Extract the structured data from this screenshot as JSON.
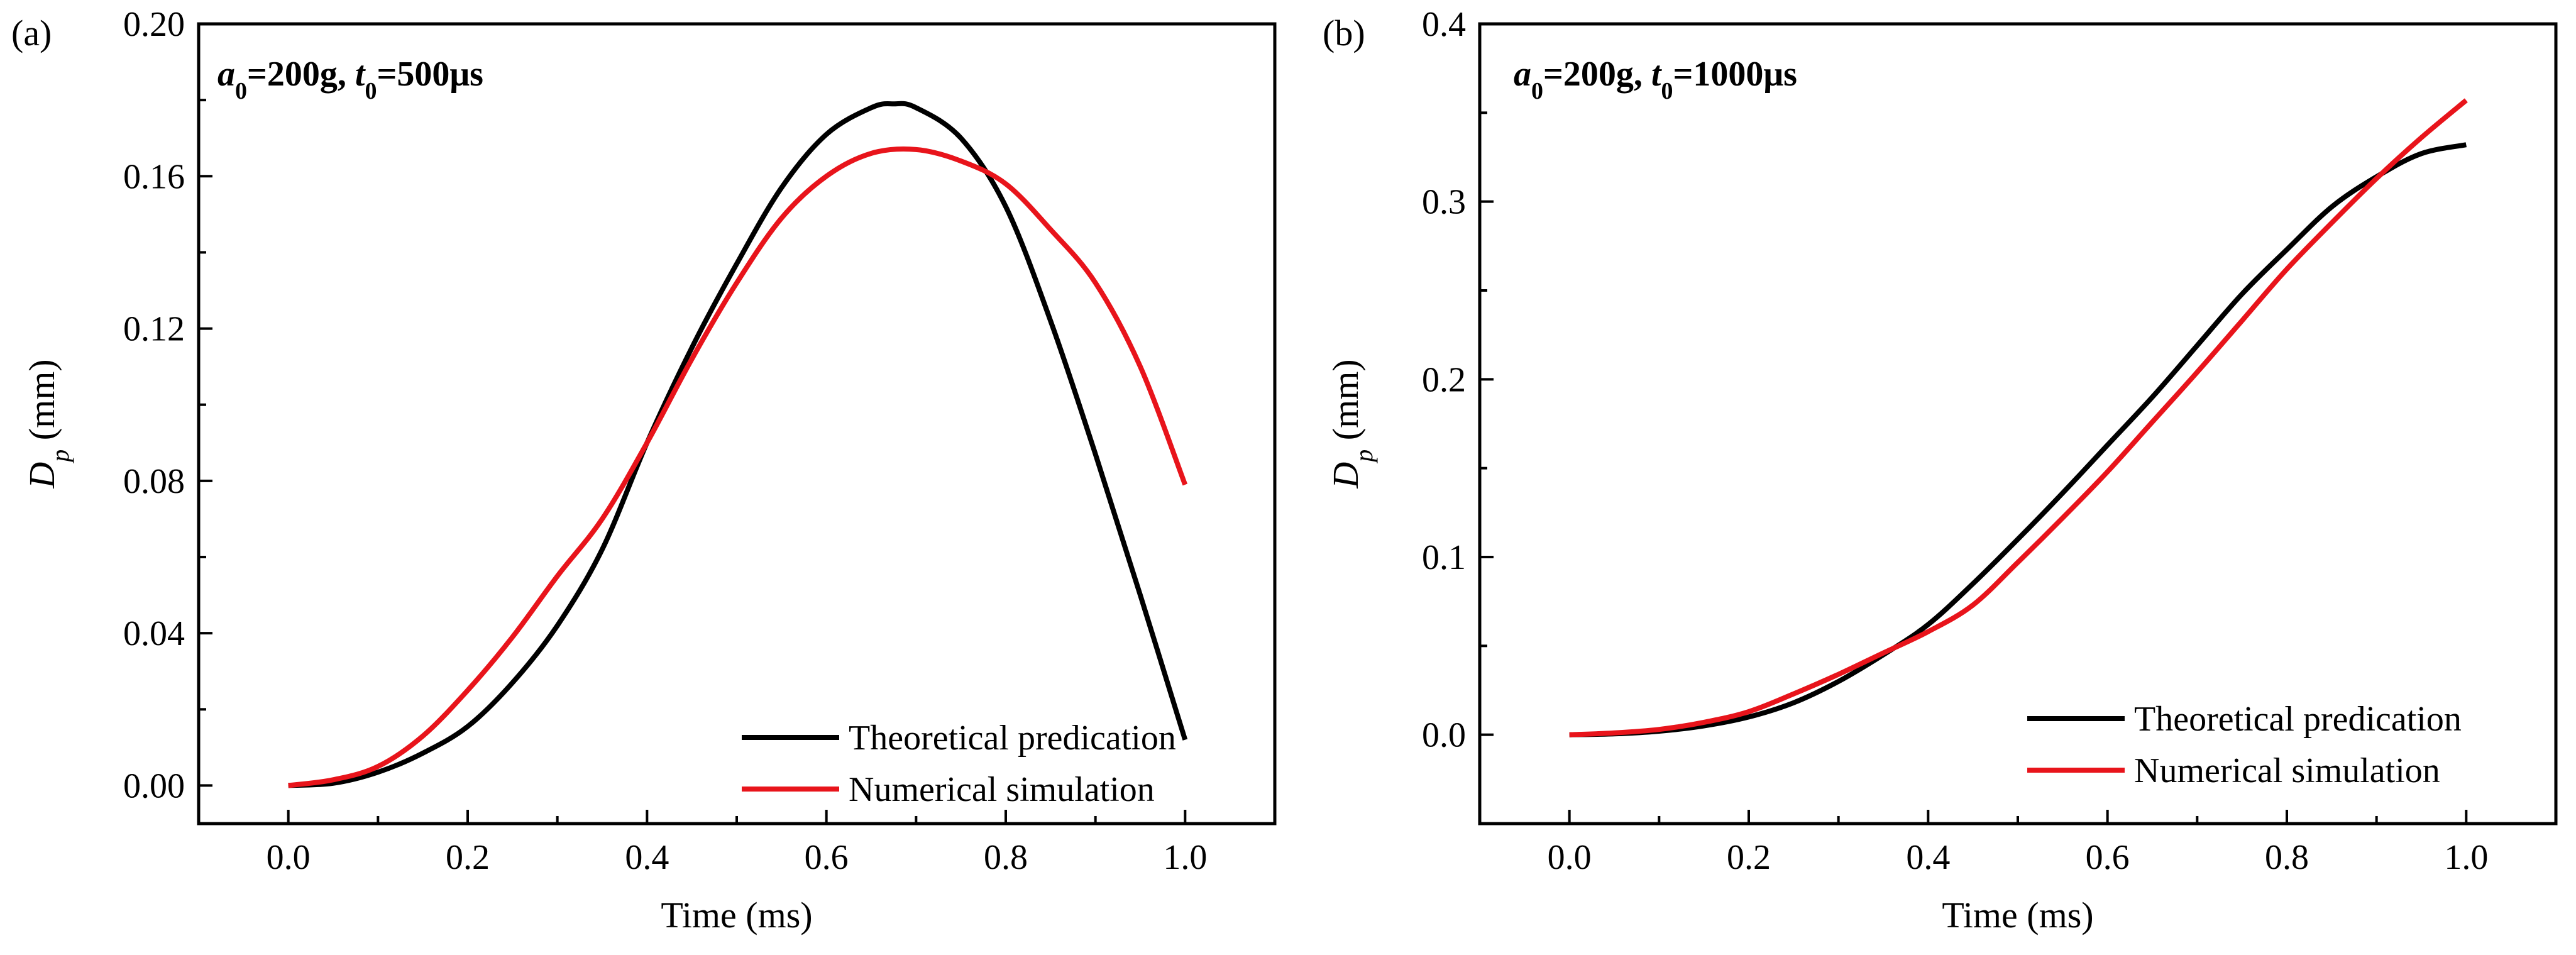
{
  "chart_data": [
    {
      "type": "line",
      "panel_label": "(a)",
      "annotation": {
        "a": "a",
        "a_sub": "0",
        "a_val": "=200g, ",
        "t": "t",
        "t_sub": "0",
        "t_val": "=500μs"
      },
      "xlabel": "Time (ms)",
      "ylabel": {
        "main": "D",
        "sub": "p",
        "unit": " (mm)"
      },
      "xlim": [
        -0.1,
        1.1
      ],
      "ylim": [
        -0.01,
        0.2
      ],
      "xticks": [
        0.0,
        0.2,
        0.4,
        0.6,
        0.8,
        1.0
      ],
      "xtick_labels": [
        "0.0",
        "0.2",
        "0.4",
        "0.6",
        "0.8",
        "1.0"
      ],
      "yticks": [
        0.0,
        0.04,
        0.08,
        0.12,
        0.16,
        0.2
      ],
      "ytick_labels": [
        "0.00",
        "0.04",
        "0.08",
        "0.12",
        "0.16",
        "0.20"
      ],
      "legend_position": "bottom-right",
      "series": [
        {
          "name": "Theoretical predication",
          "color": "#000000",
          "x": [
            0.0,
            0.05,
            0.1,
            0.15,
            0.2,
            0.25,
            0.3,
            0.35,
            0.4,
            0.45,
            0.5,
            0.55,
            0.6,
            0.65,
            0.675,
            0.7,
            0.75,
            0.8,
            0.85,
            0.9,
            0.95,
            1.0
          ],
          "y": [
            0.0,
            0.0006,
            0.0035,
            0.0085,
            0.0155,
            0.027,
            0.042,
            0.062,
            0.09,
            0.115,
            0.137,
            0.157,
            0.171,
            0.178,
            0.179,
            0.178,
            0.17,
            0.152,
            0.122,
            0.087,
            0.05,
            0.012
          ]
        },
        {
          "name": "Numerical simulation",
          "color": "#e8141b",
          "x": [
            0.0,
            0.05,
            0.1,
            0.15,
            0.2,
            0.25,
            0.3,
            0.35,
            0.4,
            0.45,
            0.5,
            0.55,
            0.6,
            0.65,
            0.7,
            0.75,
            0.8,
            0.85,
            0.9,
            0.95,
            1.0
          ],
          "y": [
            0.0,
            0.0015,
            0.005,
            0.013,
            0.025,
            0.039,
            0.055,
            0.07,
            0.09,
            0.112,
            0.132,
            0.149,
            0.16,
            0.166,
            0.167,
            0.164,
            0.158,
            0.146,
            0.132,
            0.11,
            0.079
          ]
        }
      ]
    },
    {
      "type": "line",
      "panel_label": "(b)",
      "annotation": {
        "a": "a",
        "a_sub": "0",
        "a_val": "=200g, ",
        "t": "t",
        "t_sub": "0",
        "t_val": "=1000μs"
      },
      "xlabel": "Time (ms)",
      "ylabel": {
        "main": "D",
        "sub": "p",
        "unit": " (mm)"
      },
      "xlim": [
        -0.1,
        1.1
      ],
      "ylim": [
        -0.05,
        0.4
      ],
      "xticks": [
        0.0,
        0.2,
        0.4,
        0.6,
        0.8,
        1.0
      ],
      "xtick_labels": [
        "0.0",
        "0.2",
        "0.4",
        "0.6",
        "0.8",
        "1.0"
      ],
      "yticks": [
        0.0,
        0.1,
        0.2,
        0.3,
        0.4
      ],
      "ytick_labels": [
        "0.0",
        "0.1",
        "0.2",
        "0.3",
        "0.4"
      ],
      "legend_position": "bottom-right",
      "series": [
        {
          "name": "Theoretical predication",
          "color": "#000000",
          "x": [
            0.0,
            0.05,
            0.1,
            0.15,
            0.2,
            0.25,
            0.3,
            0.35,
            0.4,
            0.45,
            0.5,
            0.55,
            0.6,
            0.65,
            0.7,
            0.75,
            0.8,
            0.85,
            0.9,
            0.95,
            1.0
          ],
          "y": [
            0.0,
            0.0005,
            0.002,
            0.005,
            0.01,
            0.018,
            0.03,
            0.045,
            0.062,
            0.085,
            0.11,
            0.136,
            0.163,
            0.19,
            0.219,
            0.248,
            0.273,
            0.297,
            0.314,
            0.327,
            0.332
          ]
        },
        {
          "name": "Numerical simulation",
          "color": "#e8141b",
          "x": [
            0.0,
            0.05,
            0.1,
            0.15,
            0.2,
            0.25,
            0.3,
            0.35,
            0.4,
            0.45,
            0.5,
            0.55,
            0.6,
            0.65,
            0.7,
            0.75,
            0.8,
            0.85,
            0.9,
            0.95,
            1.0
          ],
          "y": [
            0.0,
            0.001,
            0.003,
            0.007,
            0.013,
            0.023,
            0.034,
            0.046,
            0.058,
            0.073,
            0.097,
            0.122,
            0.148,
            0.176,
            0.204,
            0.233,
            0.262,
            0.288,
            0.313,
            0.336,
            0.357
          ]
        }
      ]
    }
  ]
}
